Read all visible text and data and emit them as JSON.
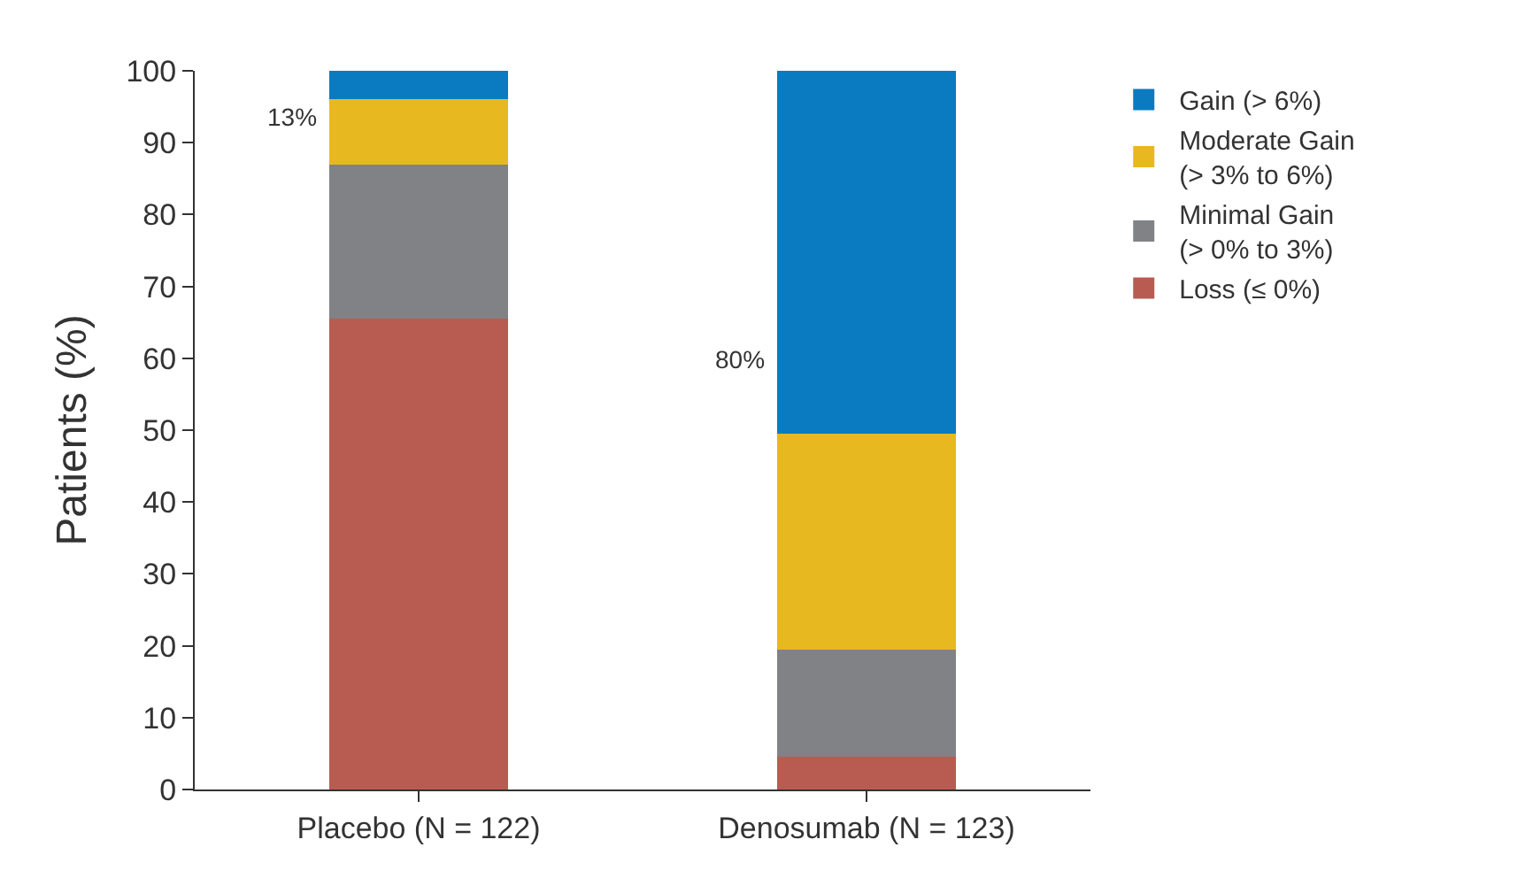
{
  "chart_data": {
    "type": "bar",
    "stacked": true,
    "ylabel": "Patients (%)",
    "categories": [
      "Placebo (N = 122)",
      "Denosumab (N = 123)"
    ],
    "series": [
      {
        "name": "Loss (≤ 0%)",
        "color": "#b85c52",
        "values": [
          65.5,
          4.5
        ]
      },
      {
        "name": "Minimal Gain\n(> 0% to 3%)",
        "color": "#808285",
        "values": [
          21.5,
          15
        ]
      },
      {
        "name": "Moderate Gain\n(> 3% to 6%)",
        "color": "#e8b820",
        "values": [
          9,
          30
        ]
      },
      {
        "name": "Gain (> 6%)",
        "color": "#0a7bc1",
        "values": [
          4,
          50.5
        ]
      }
    ],
    "annotations": [
      "13%",
      "80%"
    ],
    "ylim": [
      0,
      100
    ],
    "yticks": [
      0,
      10,
      20,
      30,
      40,
      50,
      60,
      70,
      80,
      90,
      100
    ],
    "legend": "right"
  }
}
